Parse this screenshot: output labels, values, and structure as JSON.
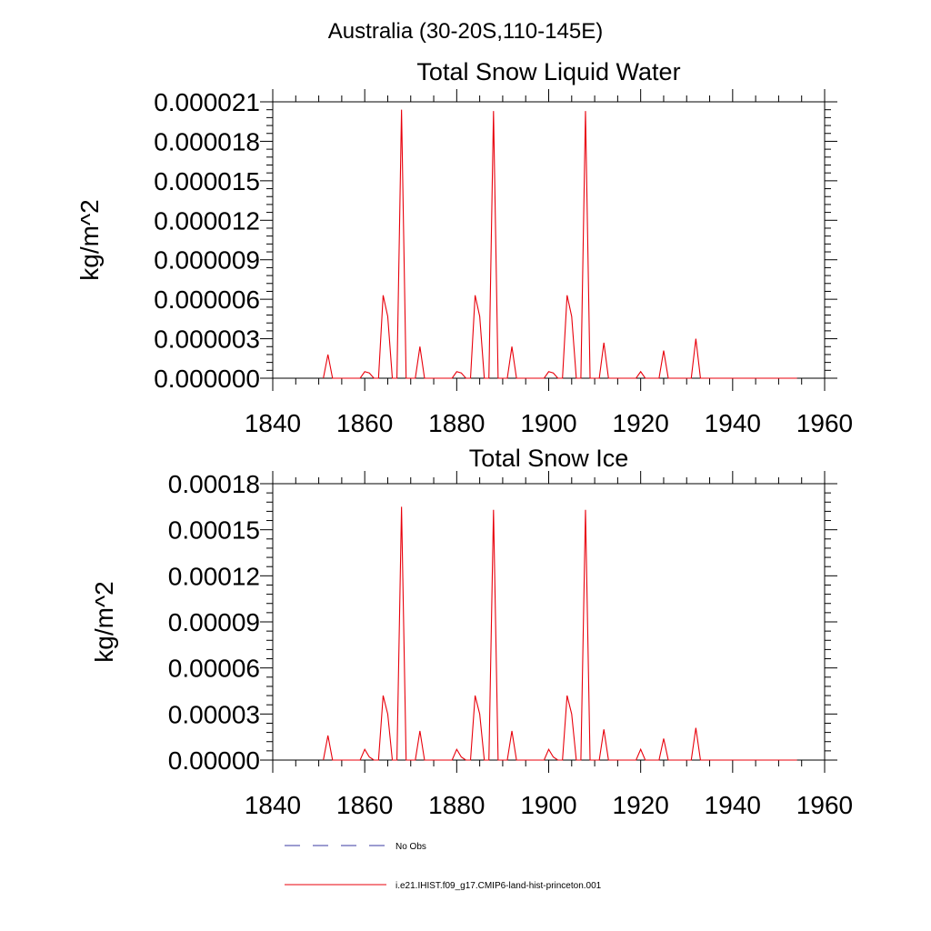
{
  "figure_title": "Australia (30-20S,110-145E)",
  "colors": {
    "model_line": "#e8000b",
    "obs_line": "#3a3aa0",
    "axis": "#000000"
  },
  "legend": [
    {
      "label": "No Obs",
      "style": "dashed",
      "color": "#3a3aa0"
    },
    {
      "label": "i.e21.IHIST.f09_g17.CMIP6-land-hist-princeton.001",
      "style": "solid",
      "color": "#e8000b"
    }
  ],
  "chart_data": [
    {
      "type": "line",
      "title": "Total Snow Liquid Water",
      "xlabel": "",
      "ylabel": "kg/m^2",
      "xlim": [
        1840,
        1960
      ],
      "ylim": [
        0,
        2.1e-05
      ],
      "x_ticks": [
        "1840",
        "1860",
        "1880",
        "1900",
        "1920",
        "1940",
        "1960"
      ],
      "y_ticks": [
        "0.000000",
        "0.000003",
        "0.000006",
        "0.000009",
        "0.000012",
        "0.000015",
        "0.000018",
        "0.000021"
      ],
      "grid": false,
      "series": [
        {
          "x": [
            1851,
            1852,
            1853,
            1859,
            1860,
            1861,
            1862,
            1863,
            1864,
            1865,
            1866,
            1867,
            1868,
            1869,
            1871,
            1872,
            1873,
            1879,
            1880,
            1881,
            1882,
            1883,
            1884,
            1885,
            1886,
            1887,
            1888,
            1889,
            1891,
            1892,
            1893,
            1899,
            1900,
            1901,
            1902,
            1903,
            1904,
            1905,
            1906,
            1907,
            1908,
            1909,
            1911,
            1912,
            1913,
            1919,
            1920,
            1921,
            1924,
            1925,
            1926,
            1931,
            1932,
            1933,
            1954
          ],
          "y": [
            0,
            1.8e-06,
            0,
            0,
            5e-07,
            4e-07,
            0,
            0,
            6.3e-06,
            4.7e-06,
            0,
            0,
            2.04e-05,
            0,
            0,
            2.4e-06,
            0,
            0,
            5e-07,
            4e-07,
            0,
            0,
            6.3e-06,
            4.7e-06,
            0,
            0,
            2.03e-05,
            0,
            0,
            2.4e-06,
            0,
            0,
            5e-07,
            4e-07,
            0,
            0,
            6.3e-06,
            4.7e-06,
            0,
            0,
            2.03e-05,
            0,
            0,
            2.7e-06,
            0,
            0,
            5e-07,
            0,
            0,
            2.1e-06,
            0,
            0,
            3e-06,
            0,
            0
          ]
        }
      ]
    },
    {
      "type": "line",
      "title": "Total Snow Ice",
      "xlabel": "",
      "ylabel": "kg/m^2",
      "xlim": [
        1840,
        1960
      ],
      "ylim": [
        0,
        0.00018
      ],
      "x_ticks": [
        "1840",
        "1860",
        "1880",
        "1900",
        "1920",
        "1940",
        "1960"
      ],
      "y_ticks": [
        "0.00000",
        "0.00003",
        "0.00006",
        "0.00009",
        "0.00012",
        "0.00015",
        "0.00018"
      ],
      "grid": false,
      "series": [
        {
          "x": [
            1851,
            1852,
            1853,
            1859,
            1860,
            1861,
            1862,
            1863,
            1864,
            1865,
            1866,
            1867,
            1868,
            1869,
            1871,
            1872,
            1873,
            1879,
            1880,
            1881,
            1882,
            1883,
            1884,
            1885,
            1886,
            1887,
            1888,
            1889,
            1891,
            1892,
            1893,
            1899,
            1900,
            1901,
            1902,
            1903,
            1904,
            1905,
            1906,
            1907,
            1908,
            1909,
            1911,
            1912,
            1913,
            1919,
            1920,
            1921,
            1924,
            1925,
            1926,
            1931,
            1932,
            1933,
            1954
          ],
          "y": [
            0,
            1.6e-05,
            0,
            0,
            7e-06,
            2e-06,
            0,
            0,
            4.2e-05,
            3e-05,
            0,
            0,
            0.000165,
            0,
            0,
            1.9e-05,
            0,
            0,
            7e-06,
            2e-06,
            0,
            0,
            4.2e-05,
            3e-05,
            0,
            0,
            0.000163,
            0,
            0,
            1.9e-05,
            0,
            0,
            7e-06,
            2e-06,
            0,
            0,
            4.2e-05,
            3e-05,
            0,
            0,
            0.000163,
            0,
            0,
            2e-05,
            0,
            0,
            7e-06,
            0,
            0,
            1.4e-05,
            0,
            0,
            2.1e-05,
            0,
            0
          ]
        }
      ]
    }
  ]
}
